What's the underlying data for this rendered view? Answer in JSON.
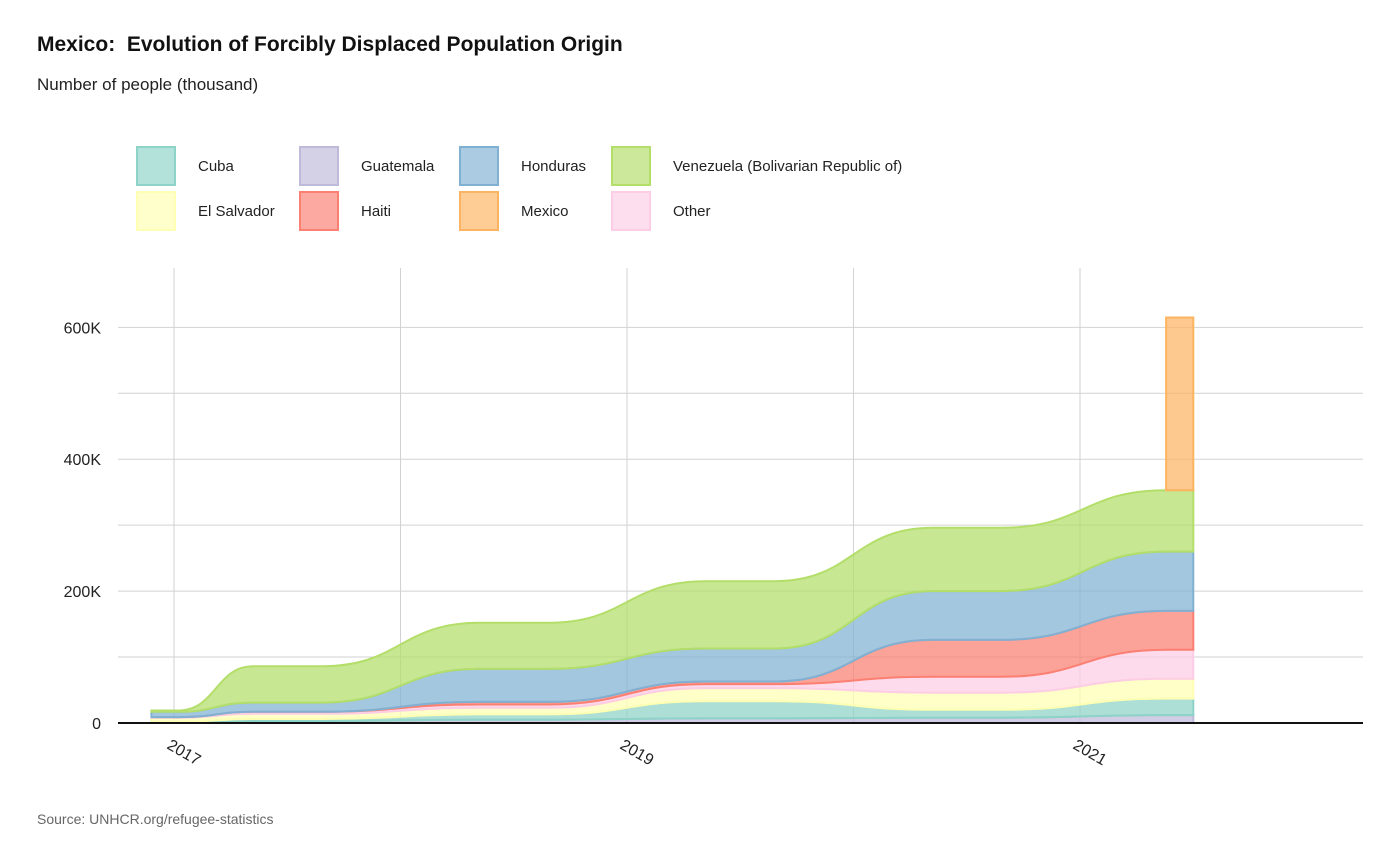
{
  "header": {
    "title": "Mexico:  Evolution of Forcibly Displaced Population Origin",
    "subtitle": "Number of people (thousand)"
  },
  "footer": {
    "source": "Source: UNHCR.org/refugee-statistics"
  },
  "chart_data": {
    "type": "area",
    "stacked": true,
    "curve": "step-smoothed",
    "x": [
      2016.9,
      2017.5,
      2018.5,
      2019.5,
      2020.5,
      2021.5
    ],
    "x_ticks": [
      2017,
      2019,
      2021
    ],
    "x_tick_labels": [
      "2017",
      "2019",
      "2021"
    ],
    "ylim": [
      0,
      690
    ],
    "y_ticks": [
      0,
      200,
      400,
      600
    ],
    "y_tick_labels": [
      "0",
      "200K",
      "400K",
      "600K"
    ],
    "y_minor_ticks": [
      100,
      300,
      500
    ],
    "grid": true,
    "legend_position": "top-left",
    "series": [
      {
        "name": "Guatemala",
        "color": "#bebada",
        "values": [
          1,
          3,
          5,
          7,
          8,
          12
        ]
      },
      {
        "name": "Cuba",
        "color": "#8dd3c7",
        "values": [
          1,
          3,
          8,
          26,
          12,
          25
        ]
      },
      {
        "name": "El Salvador",
        "color": "#ffffb3",
        "values": [
          6,
          8,
          10,
          20,
          26,
          30
        ]
      },
      {
        "name": "Other",
        "color": "#fccde5",
        "values": [
          1,
          3,
          5,
          6,
          24,
          44
        ]
      },
      {
        "name": "Haiti",
        "color": "#fb8072",
        "values": [
          0,
          0,
          4,
          4,
          56,
          59
        ]
      },
      {
        "name": "Honduras",
        "color": "#80b1d3",
        "values": [
          8,
          14,
          50,
          50,
          74,
          90
        ]
      },
      {
        "name": "Venezuela (Bolivarian Republic of)",
        "color": "#b3de69",
        "values": [
          2,
          55,
          70,
          102,
          96,
          93
        ]
      },
      {
        "name": "Mexico",
        "color": "#fdb462",
        "values": [
          0,
          0,
          0,
          0,
          0,
          262
        ]
      }
    ],
    "legend_order": [
      "Cuba",
      "El Salvador",
      "Guatemala",
      "Haiti",
      "Honduras",
      "Mexico",
      "Venezuela (Bolivarian Republic of)",
      "Other"
    ]
  }
}
